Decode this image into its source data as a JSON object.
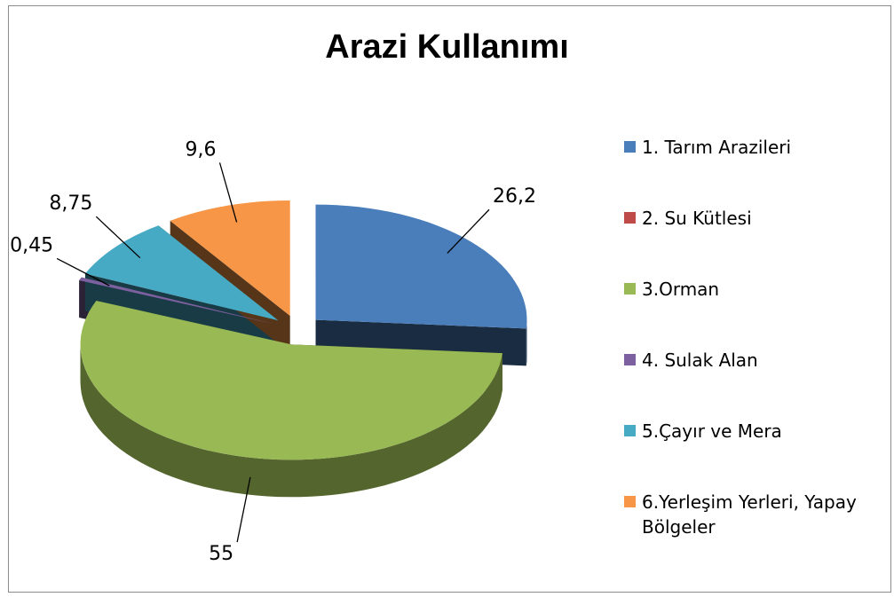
{
  "chart_data": {
    "type": "pie",
    "title": "Arazi Kullanımı",
    "categories": [
      "1. Tarım Arazileri",
      "2. Su Kütlesi",
      "3.Orman",
      "4. Sulak Alan",
      "5.Çayır ve Mera",
      "6.Yerleşim Yerleri, Yapay Bölgeler"
    ],
    "values": [
      26.2,
      0,
      55,
      0.45,
      8.75,
      9.6
    ],
    "value_labels": [
      "26,2",
      null,
      "55",
      "0,45",
      "8,75",
      "9,6"
    ],
    "colors": [
      "#4a7ebb",
      "#be4b48",
      "#98b954",
      "#7d60a0",
      "#46aac5",
      "#f79646"
    ],
    "legend": "right"
  }
}
